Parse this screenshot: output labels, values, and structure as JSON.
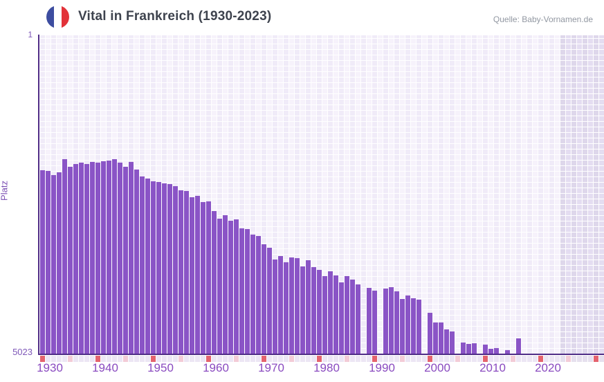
{
  "header": {
    "title": "Vital in Frankreich (1930-2023)",
    "source": "Quelle: Baby-Vornamen.de",
    "flag_icon": {
      "name": "france-flag-icon",
      "blue": "#3d4da0",
      "white": "#ffffff",
      "red": "#e23239"
    }
  },
  "axes": {
    "y_label": "Platz",
    "y_top_tick": "1",
    "y_bottom_tick": "5023",
    "x_tick_labels": [
      "1930",
      "1940",
      "1950",
      "1960",
      "1970",
      "1980",
      "1990",
      "2000",
      "2010",
      "2020"
    ]
  },
  "colors": {
    "bar": "#8a54c6",
    "axis_line": "#502d87",
    "tick_text": "#8a4bc0",
    "grid_cell": "#f0ebf8",
    "grid_cell_alt": "#f6f2fb",
    "future_cell": "#ded7eb",
    "future_cell_alt": "#e4ddf1",
    "strip_default": "#ece6f4",
    "strip_default_future": "#e6e0ee",
    "strip_decade_red": "#e4636e",
    "strip_half_decade_pink": "#f3ccd7"
  },
  "chart_data": {
    "type": "bar",
    "title": "Vital in Frankreich (1930-2023)",
    "xlabel": "",
    "ylabel": "Platz",
    "legend": null,
    "grid": "cell-grid on",
    "y_axis_inverted": true,
    "ylim": [
      1,
      5023
    ],
    "x_years_shown": [
      1930,
      2031
    ],
    "data_range": [
      1930,
      2023
    ],
    "future_no_data_from": 2024,
    "note": "Bars show the popularity rank (Platz) of the name Vital in France per year; rank 1 at top, 5023 at bottom; missing years have no bar.",
    "points": [
      {
        "year": 1930,
        "rank": 2130
      },
      {
        "year": 1931,
        "rank": 2140
      },
      {
        "year": 1932,
        "rank": 2205
      },
      {
        "year": 1933,
        "rank": 2165
      },
      {
        "year": 1934,
        "rank": 1955
      },
      {
        "year": 1935,
        "rank": 2075
      },
      {
        "year": 1936,
        "rank": 2030
      },
      {
        "year": 1937,
        "rank": 2010
      },
      {
        "year": 1938,
        "rank": 2030
      },
      {
        "year": 1939,
        "rank": 2000
      },
      {
        "year": 1940,
        "rank": 2010
      },
      {
        "year": 1941,
        "rank": 1990
      },
      {
        "year": 1942,
        "rank": 1975
      },
      {
        "year": 1943,
        "rank": 1955
      },
      {
        "year": 1944,
        "rank": 2010
      },
      {
        "year": 1945,
        "rank": 2075
      },
      {
        "year": 1946,
        "rank": 2000
      },
      {
        "year": 1947,
        "rank": 2120
      },
      {
        "year": 1948,
        "rank": 2230
      },
      {
        "year": 1949,
        "rank": 2260
      },
      {
        "year": 1950,
        "rank": 2305
      },
      {
        "year": 1951,
        "rank": 2315
      },
      {
        "year": 1952,
        "rank": 2335
      },
      {
        "year": 1953,
        "rank": 2350
      },
      {
        "year": 1954,
        "rank": 2380
      },
      {
        "year": 1955,
        "rank": 2445
      },
      {
        "year": 1956,
        "rank": 2455
      },
      {
        "year": 1957,
        "rank": 2555
      },
      {
        "year": 1958,
        "rank": 2535
      },
      {
        "year": 1959,
        "rank": 2630
      },
      {
        "year": 1960,
        "rank": 2620
      },
      {
        "year": 1961,
        "rank": 2775
      },
      {
        "year": 1962,
        "rank": 2895
      },
      {
        "year": 1963,
        "rank": 2840
      },
      {
        "year": 1964,
        "rank": 2925
      },
      {
        "year": 1965,
        "rank": 2905
      },
      {
        "year": 1966,
        "rank": 3045
      },
      {
        "year": 1967,
        "rank": 3060
      },
      {
        "year": 1968,
        "rank": 3145
      },
      {
        "year": 1969,
        "rank": 3165
      },
      {
        "year": 1970,
        "rank": 3300
      },
      {
        "year": 1971,
        "rank": 3350
      },
      {
        "year": 1972,
        "rank": 3540
      },
      {
        "year": 1973,
        "rank": 3485
      },
      {
        "year": 1974,
        "rank": 3580
      },
      {
        "year": 1975,
        "rank": 3505
      },
      {
        "year": 1976,
        "rank": 3515
      },
      {
        "year": 1977,
        "rank": 3645
      },
      {
        "year": 1978,
        "rank": 3550
      },
      {
        "year": 1979,
        "rank": 3660
      },
      {
        "year": 1980,
        "rank": 3700
      },
      {
        "year": 1981,
        "rank": 3800
      },
      {
        "year": 1982,
        "rank": 3725
      },
      {
        "year": 1983,
        "rank": 3790
      },
      {
        "year": 1984,
        "rank": 3900
      },
      {
        "year": 1985,
        "rank": 3800
      },
      {
        "year": 1986,
        "rank": 3855
      },
      {
        "year": 1987,
        "rank": 3930
      },
      {
        "year": 1988,
        "rank": null
      },
      {
        "year": 1989,
        "rank": 3985
      },
      {
        "year": 1990,
        "rank": 4030
      },
      {
        "year": 1991,
        "rank": null
      },
      {
        "year": 1992,
        "rank": 3995
      },
      {
        "year": 1993,
        "rank": 3975
      },
      {
        "year": 1994,
        "rank": 4040
      },
      {
        "year": 1995,
        "rank": 4160
      },
      {
        "year": 1996,
        "rank": 4105
      },
      {
        "year": 1997,
        "rank": 4150
      },
      {
        "year": 1998,
        "rank": 4170
      },
      {
        "year": 1999,
        "rank": null
      },
      {
        "year": 2000,
        "rank": 4380
      },
      {
        "year": 2001,
        "rank": 4530
      },
      {
        "year": 2002,
        "rank": 4530
      },
      {
        "year": 2003,
        "rank": 4640
      },
      {
        "year": 2004,
        "rank": 4675
      },
      {
        "year": 2005,
        "rank": null
      },
      {
        "year": 2006,
        "rank": 4850
      },
      {
        "year": 2007,
        "rank": 4870
      },
      {
        "year": 2008,
        "rank": 4860
      },
      {
        "year": 2009,
        "rank": null
      },
      {
        "year": 2010,
        "rank": 4880
      },
      {
        "year": 2011,
        "rank": 4945
      },
      {
        "year": 2012,
        "rank": 4935
      },
      {
        "year": 2013,
        "rank": null
      },
      {
        "year": 2014,
        "rank": 4970
      },
      {
        "year": 2015,
        "rank": null
      },
      {
        "year": 2016,
        "rank": 4780
      },
      {
        "year": 2017,
        "rank": null
      },
      {
        "year": 2018,
        "rank": null
      },
      {
        "year": 2019,
        "rank": null
      },
      {
        "year": 2020,
        "rank": null
      },
      {
        "year": 2021,
        "rank": null
      },
      {
        "year": 2022,
        "rank": null
      },
      {
        "year": 2023,
        "rank": null
      }
    ]
  }
}
